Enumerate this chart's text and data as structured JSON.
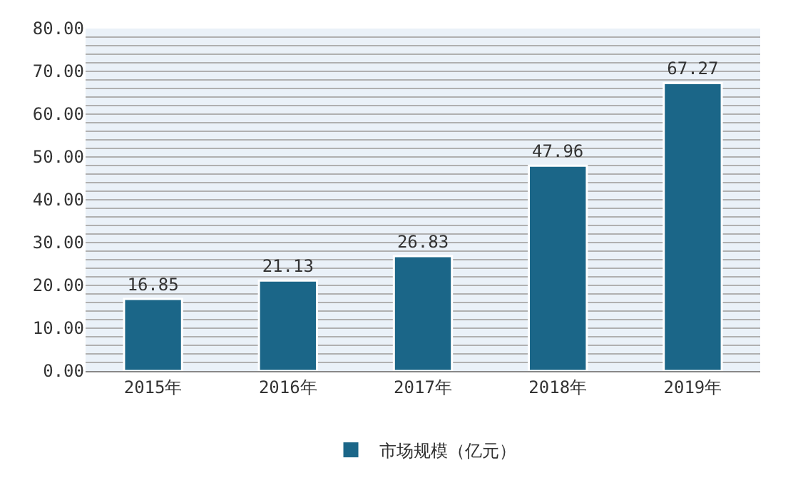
{
  "chart_data": {
    "type": "bar",
    "categories": [
      "2015年",
      "2016年",
      "2017年",
      "2018年",
      "2019年"
    ],
    "series": [
      {
        "name": "市场规模（亿元）",
        "color": "#1b6688",
        "values": [
          16.85,
          21.13,
          26.83,
          47.96,
          67.27
        ]
      }
    ],
    "ylim": [
      0,
      80
    ],
    "yticks": [
      {
        "value": 0,
        "label": "0.00"
      },
      {
        "value": 10,
        "label": "10.00"
      },
      {
        "value": 20,
        "label": "20.00"
      },
      {
        "value": 30,
        "label": "30.00"
      },
      {
        "value": 40,
        "label": "40.00"
      },
      {
        "value": 50,
        "label": "50.00"
      },
      {
        "value": 60,
        "label": "60.00"
      },
      {
        "value": 70,
        "label": "70.00"
      },
      {
        "value": 80,
        "label": "80.00"
      }
    ],
    "data_labels": true,
    "grid": "y",
    "legend": "bottom"
  }
}
